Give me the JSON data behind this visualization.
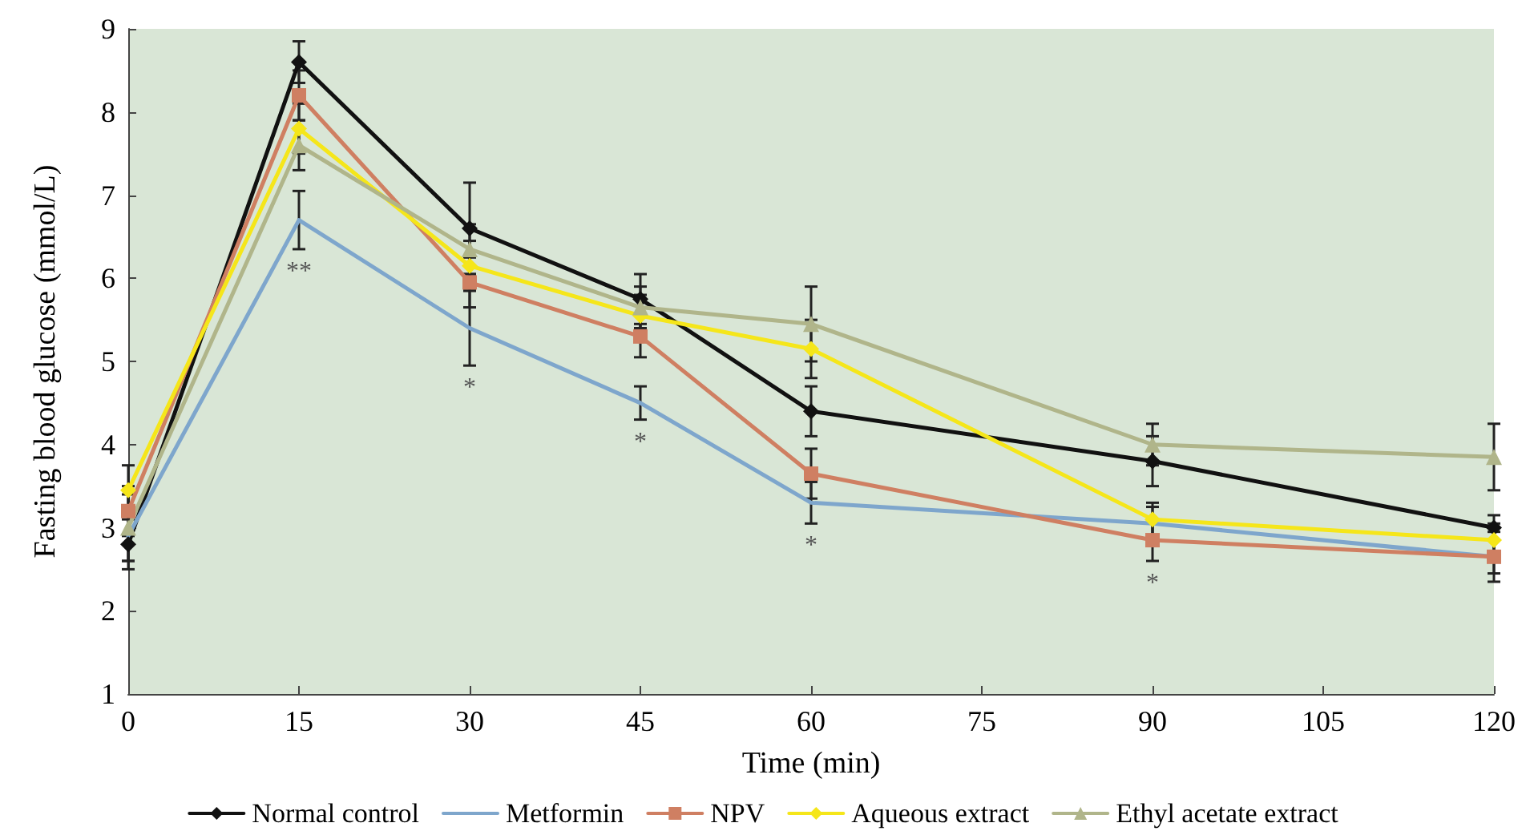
{
  "chart_data": {
    "type": "line",
    "xlabel": "Time (min)",
    "ylabel": "Fasting blood glucose (mmol/L)",
    "x": [
      0,
      15,
      30,
      45,
      60,
      90,
      120
    ],
    "xlim": [
      0,
      120
    ],
    "xticks": [
      0,
      15,
      30,
      45,
      60,
      75,
      90,
      105,
      120
    ],
    "ylim": [
      1,
      9
    ],
    "yticks": [
      1,
      2,
      3,
      4,
      5,
      6,
      7,
      8,
      9
    ],
    "grid": false,
    "legend": "bottom",
    "series": [
      {
        "name": "Normal control",
        "color": "#111111",
        "marker": "diamond",
        "values": [
          2.8,
          8.6,
          6.6,
          5.75,
          4.4,
          3.8,
          3.0
        ],
        "errors": [
          0.3,
          0.25,
          0.55,
          0.3,
          0.3,
          0.3,
          0.15
        ]
      },
      {
        "name": "Metformin",
        "color": "#7ea6cc",
        "marker": "none",
        "values": [
          2.9,
          6.7,
          5.4,
          4.5,
          3.3,
          3.05,
          2.65
        ],
        "errors": [
          0.3,
          0.35,
          0.45,
          0.2,
          0.25,
          0.2,
          0.2
        ]
      },
      {
        "name": "NPV",
        "color": "#cf7f62",
        "marker": "square",
        "values": [
          3.2,
          8.2,
          5.95,
          5.3,
          3.65,
          2.85,
          2.65
        ],
        "errors": [
          0.3,
          0.3,
          0.3,
          0.25,
          0.3,
          0.25,
          0.3
        ]
      },
      {
        "name": "Aqueous extract",
        "color": "#f5e61a",
        "marker": "diamond",
        "values": [
          3.45,
          7.8,
          6.15,
          5.55,
          5.15,
          3.1,
          2.85
        ],
        "errors": [
          0.3,
          0.3,
          0.3,
          0.25,
          0.35,
          0.2,
          0.2
        ]
      },
      {
        "name": "Ethyl acetate extract",
        "color": "#b0b58a",
        "marker": "triangle",
        "values": [
          3.0,
          7.6,
          6.35,
          5.65,
          5.45,
          4.0,
          3.85
        ],
        "errors": [
          0.4,
          0.3,
          0.3,
          0.25,
          0.45,
          0.25,
          0.4
        ]
      }
    ],
    "annotations": [
      "**",
      "*",
      "*",
      "*",
      "*"
    ]
  }
}
